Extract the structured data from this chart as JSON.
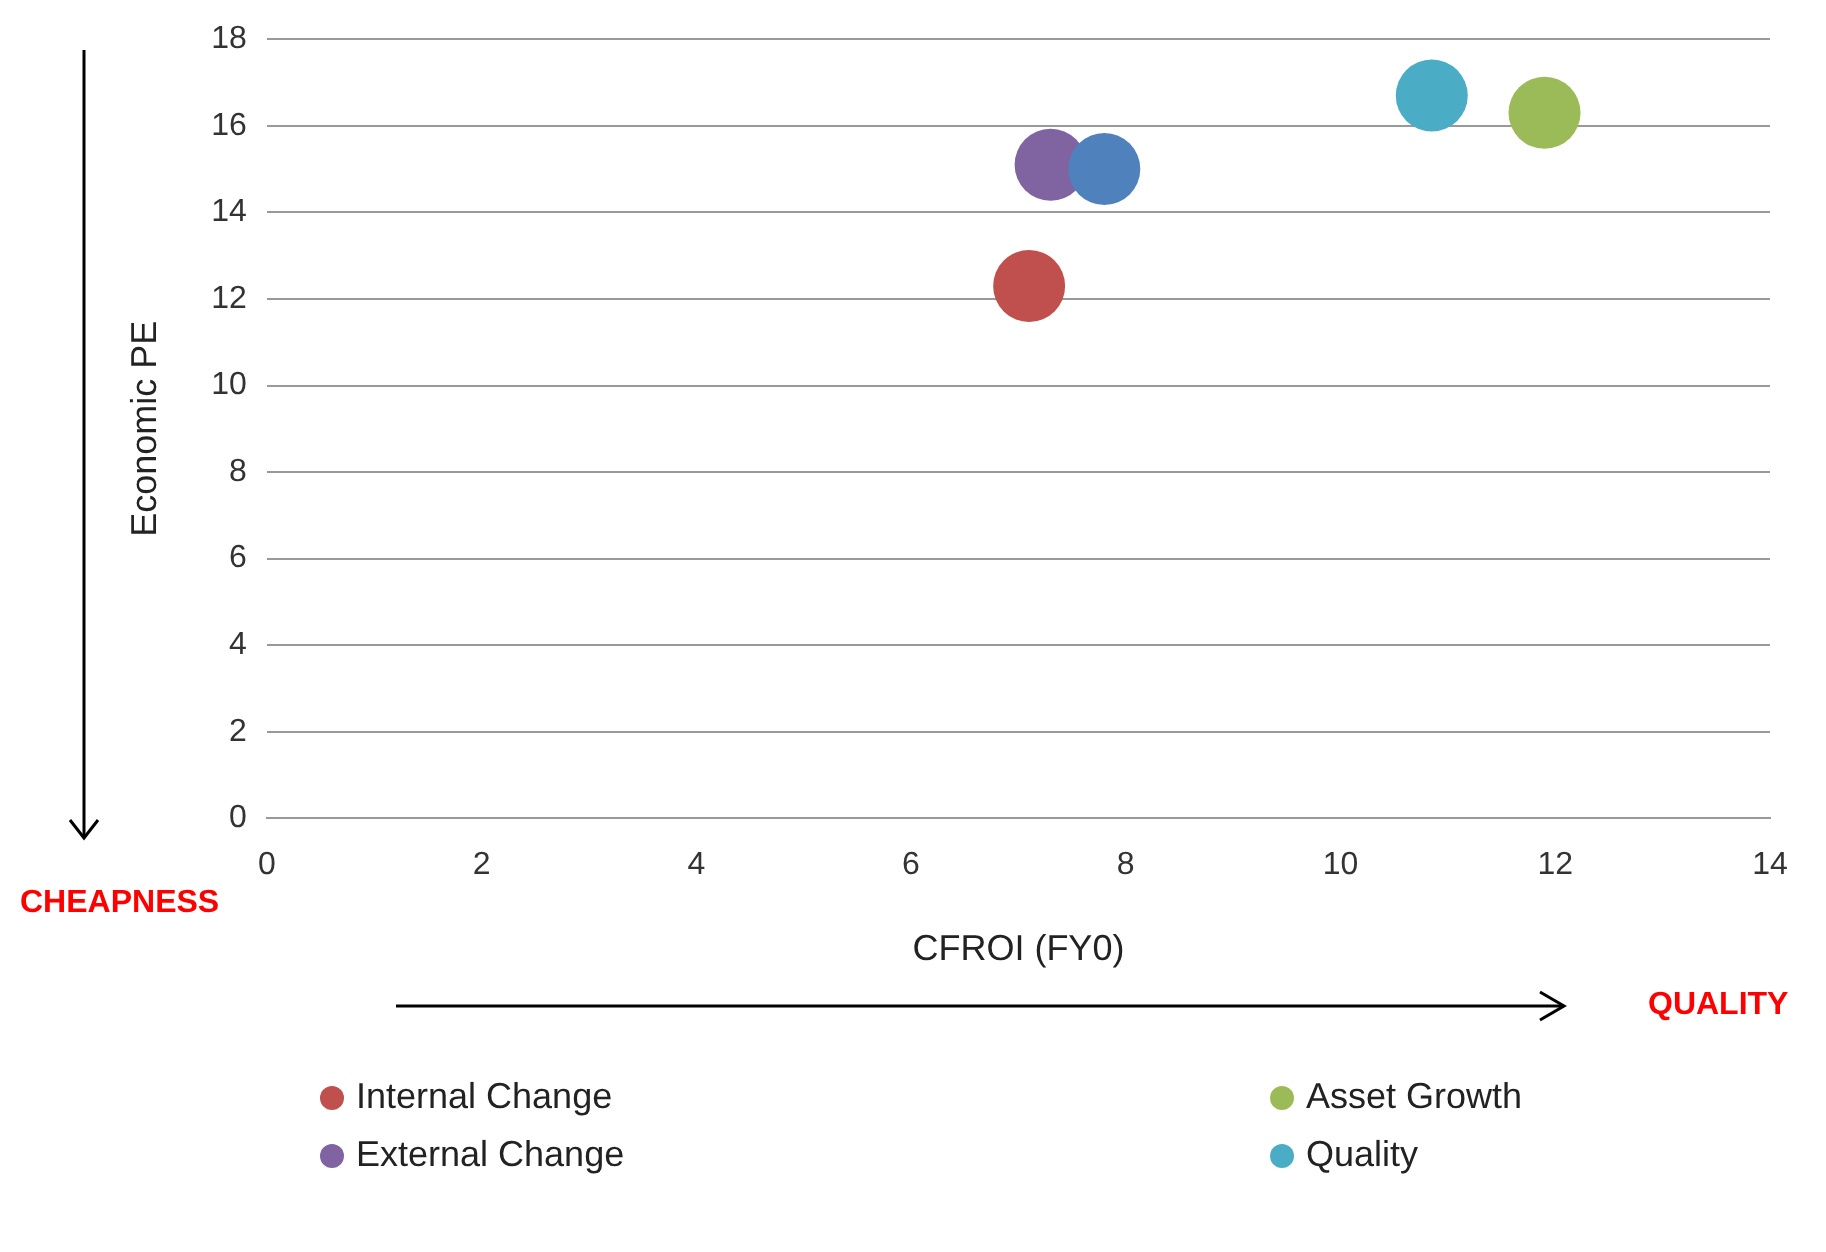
{
  "chart_data": {
    "type": "scatter",
    "xlabel": "CFROI (FY0)",
    "ylabel": "Economic PE",
    "xlim": [
      0,
      14
    ],
    "xticks": [
      0,
      2,
      4,
      6,
      8,
      10,
      12,
      14
    ],
    "ylim": [
      0,
      18
    ],
    "yticks": [
      0,
      2,
      4,
      6,
      8,
      10,
      12,
      14,
      16,
      18
    ],
    "grid": "y",
    "legend": "bottom",
    "marker": "circle",
    "annotations": [
      "CHEAPNESS",
      "QUALITY"
    ],
    "series": [
      {
        "color": "#4f81bd",
        "x": [
          7.8
        ],
        "values": [
          15.0
        ]
      },
      {
        "name": "Internal Change",
        "color": "#c0504d",
        "x": [
          7.1
        ],
        "values": [
          12.3
        ]
      },
      {
        "name": "Asset Growth",
        "color": "#9bbb59",
        "x": [
          11.9
        ],
        "values": [
          16.3
        ]
      },
      {
        "name": "External Change",
        "color": "#8064a2",
        "x": [
          7.3
        ],
        "values": [
          15.1
        ]
      },
      {
        "name": "Quality",
        "color": "#4bacc6",
        "x": [
          10.85
        ],
        "values": [
          16.7
        ]
      }
    ]
  }
}
